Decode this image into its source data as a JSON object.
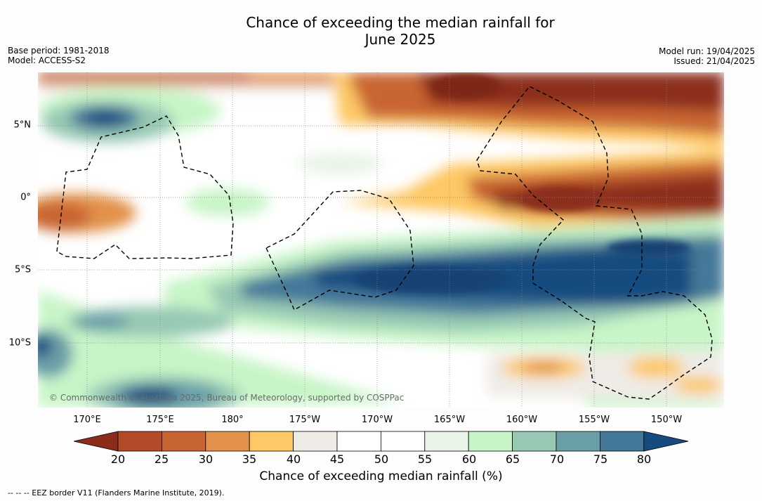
{
  "title": "Chance of exceeding the median rainfall for",
  "subtitle": "June 2025",
  "meta_left": {
    "base_period": "Base period: 1981-2018",
    "model": "Model: ACCESS-S2"
  },
  "meta_right": {
    "model_run": "Model run: 19/04/2025",
    "issued": "Issued: 21/04/2025"
  },
  "lat_labels": [
    "5°N",
    "0°",
    "5°S",
    "10°S"
  ],
  "lon_labels": [
    "170°E",
    "175°E",
    "180°",
    "175°W",
    "170°W",
    "165°W",
    "160°W",
    "155°W",
    "150°W"
  ],
  "copyright": "© Commonwealth of Australia 2025, Bureau of Meteorology, supported by COSPPac",
  "colorbar": {
    "ticks": [
      "20",
      "25",
      "30",
      "35",
      "40",
      "45",
      "50",
      "55",
      "60",
      "65",
      "70",
      "75",
      "80"
    ],
    "colors": [
      "#8c2d1b",
      "#b34a28",
      "#c96532",
      "#e2914a",
      "#fdc865",
      "#efebe6",
      "#ffffff",
      "#ffffff",
      "#e8f4e6",
      "#c8f5c8",
      "#97c9b4",
      "#6a9fa8",
      "#447899",
      "#164b7f"
    ],
    "title": "Chance of exceeding median rainfall (%)"
  },
  "footer": "-- -- -- EEZ border V11 (Flanders Marine Institute, 2019)."
}
